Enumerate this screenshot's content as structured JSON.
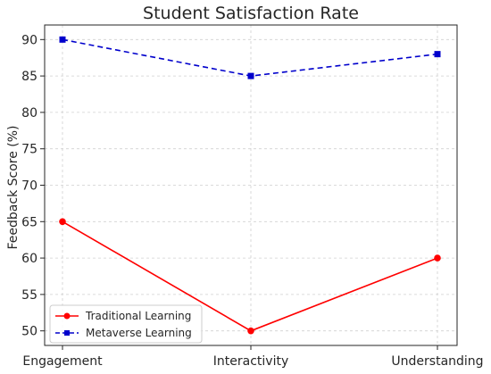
{
  "chart_data": {
    "type": "line",
    "title": "Student Satisfaction Rate",
    "xlabel": "",
    "ylabel": "Feedback Score (%)",
    "categories": [
      "Engagement",
      "Interactivity",
      "Understanding"
    ],
    "ylim": [
      48,
      92
    ],
    "yticks": [
      50,
      55,
      60,
      65,
      70,
      75,
      80,
      85,
      90
    ],
    "grid": true,
    "legend_position": "lower-left",
    "series": [
      {
        "name": "Traditional Learning",
        "values": [
          65,
          50,
          60
        ],
        "color": "#ff0000",
        "linestyle": "solid",
        "marker": "circle"
      },
      {
        "name": "Metaverse Learning",
        "values": [
          90,
          85,
          88
        ],
        "color": "#0000cc",
        "linestyle": "dashed",
        "marker": "square"
      }
    ]
  }
}
